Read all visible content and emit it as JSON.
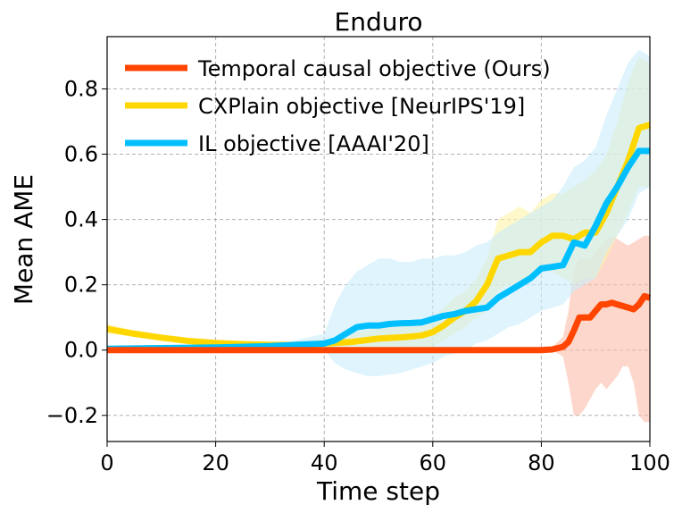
{
  "chart_data": {
    "type": "line",
    "title": "Enduro",
    "xlabel": "Time step",
    "ylabel": "Mean AME",
    "xlim": [
      0,
      100
    ],
    "ylim": [
      -0.28,
      0.96
    ],
    "xticks": [
      0,
      20,
      40,
      60,
      80,
      100
    ],
    "xtick_labels": [
      "0",
      "20",
      "40",
      "60",
      "80",
      "100"
    ],
    "yticks": [
      -0.2,
      0.0,
      0.2,
      0.4,
      0.6,
      0.8
    ],
    "ytick_labels": [
      "−0.2",
      "0.0",
      "0.2",
      "0.4",
      "0.6",
      "0.8"
    ],
    "grid": true,
    "legend_position": "top-left",
    "series": [
      {
        "name": "Temporal causal objective (Ours)",
        "color": "#ff4500",
        "band_color": "#fcbda8",
        "x": [
          0,
          20,
          40,
          60,
          80,
          82,
          84,
          85,
          86,
          87,
          88,
          89,
          90,
          91,
          92,
          93,
          94,
          95,
          96,
          97,
          98,
          99,
          100
        ],
        "y": [
          0,
          0,
          0,
          0,
          0,
          0.002,
          0.01,
          0.025,
          0.06,
          0.1,
          0.1,
          0.1,
          0.12,
          0.14,
          0.14,
          0.145,
          0.14,
          0.135,
          0.13,
          0.125,
          0.14,
          0.165,
          0.16
        ],
        "lower": [
          0,
          0,
          0,
          0,
          0,
          0,
          -0.02,
          -0.1,
          -0.2,
          -0.2,
          -0.18,
          -0.15,
          -0.12,
          -0.1,
          -0.12,
          -0.1,
          -0.08,
          -0.05,
          -0.05,
          -0.1,
          -0.2,
          -0.22,
          -0.22
        ],
        "upper": [
          0,
          0,
          0,
          0,
          0,
          0.01,
          0.04,
          0.12,
          0.25,
          0.28,
          0.28,
          0.28,
          0.3,
          0.32,
          0.34,
          0.35,
          0.34,
          0.33,
          0.32,
          0.33,
          0.34,
          0.35,
          0.35
        ]
      },
      {
        "name": "CXPlain objective [NeurIPS'19]",
        "color": "#ffd700",
        "band_color": "#fff3a6",
        "x": [
          0,
          5,
          10,
          15,
          20,
          25,
          30,
          35,
          40,
          45,
          50,
          55,
          58,
          60,
          62,
          64,
          66,
          68,
          70,
          72,
          74,
          76,
          78,
          80,
          82,
          84,
          86,
          88,
          90,
          92,
          94,
          96,
          98,
          100
        ],
        "y": [
          0.065,
          0.05,
          0.038,
          0.028,
          0.022,
          0.018,
          0.016,
          0.016,
          0.02,
          0.025,
          0.035,
          0.04,
          0.045,
          0.055,
          0.075,
          0.1,
          0.12,
          0.15,
          0.2,
          0.28,
          0.29,
          0.3,
          0.3,
          0.33,
          0.35,
          0.35,
          0.34,
          0.36,
          0.36,
          0.42,
          0.5,
          0.58,
          0.68,
          0.69
        ],
        "lower": [
          0.05,
          0.04,
          0.03,
          0.022,
          0.018,
          0.015,
          0.013,
          0.013,
          0.005,
          0.0,
          0.0,
          0.0,
          0.0,
          0.01,
          0.03,
          0.05,
          0.07,
          0.1,
          0.12,
          0.18,
          0.2,
          0.2,
          0.22,
          0.24,
          0.24,
          0.22,
          0.2,
          0.22,
          0.22,
          0.28,
          0.35,
          0.42,
          0.5,
          0.5
        ],
        "upper": [
          0.08,
          0.06,
          0.046,
          0.034,
          0.026,
          0.021,
          0.019,
          0.019,
          0.03,
          0.05,
          0.07,
          0.08,
          0.09,
          0.1,
          0.13,
          0.16,
          0.18,
          0.22,
          0.28,
          0.4,
          0.42,
          0.44,
          0.42,
          0.46,
          0.48,
          0.48,
          0.5,
          0.52,
          0.55,
          0.6,
          0.7,
          0.82,
          0.9,
          0.88
        ]
      },
      {
        "name": "IL objective [AAAI'20]",
        "color": "#00bfff",
        "band_color": "#c9ecfa",
        "x": [
          0,
          10,
          20,
          30,
          40,
          42,
          44,
          46,
          48,
          50,
          52,
          54,
          56,
          58,
          60,
          62,
          64,
          66,
          68,
          70,
          72,
          74,
          76,
          78,
          80,
          82,
          84,
          86,
          88,
          90,
          92,
          94,
          96,
          98,
          100
        ],
        "y": [
          0.004,
          0.006,
          0.008,
          0.012,
          0.02,
          0.03,
          0.05,
          0.07,
          0.075,
          0.075,
          0.08,
          0.082,
          0.083,
          0.085,
          0.095,
          0.105,
          0.11,
          0.12,
          0.125,
          0.13,
          0.16,
          0.18,
          0.2,
          0.22,
          0.25,
          0.255,
          0.26,
          0.33,
          0.32,
          0.38,
          0.45,
          0.5,
          0.56,
          0.61,
          0.61
        ],
        "lower": [
          0.004,
          0.006,
          0.008,
          0.012,
          0.0,
          -0.04,
          -0.06,
          -0.07,
          -0.08,
          -0.08,
          -0.075,
          -0.07,
          -0.06,
          -0.05,
          -0.04,
          -0.02,
          -0.01,
          0.0,
          0.02,
          0.03,
          0.05,
          0.07,
          0.08,
          0.1,
          0.12,
          0.13,
          0.14,
          0.18,
          0.2,
          0.22,
          0.3,
          0.35,
          0.4,
          0.48,
          0.5
        ],
        "upper": [
          0.004,
          0.006,
          0.008,
          0.012,
          0.05,
          0.14,
          0.2,
          0.24,
          0.26,
          0.28,
          0.28,
          0.27,
          0.27,
          0.28,
          0.28,
          0.29,
          0.29,
          0.3,
          0.32,
          0.33,
          0.36,
          0.38,
          0.4,
          0.42,
          0.44,
          0.46,
          0.5,
          0.56,
          0.58,
          0.62,
          0.72,
          0.8,
          0.88,
          0.92,
          0.9
        ]
      }
    ]
  }
}
